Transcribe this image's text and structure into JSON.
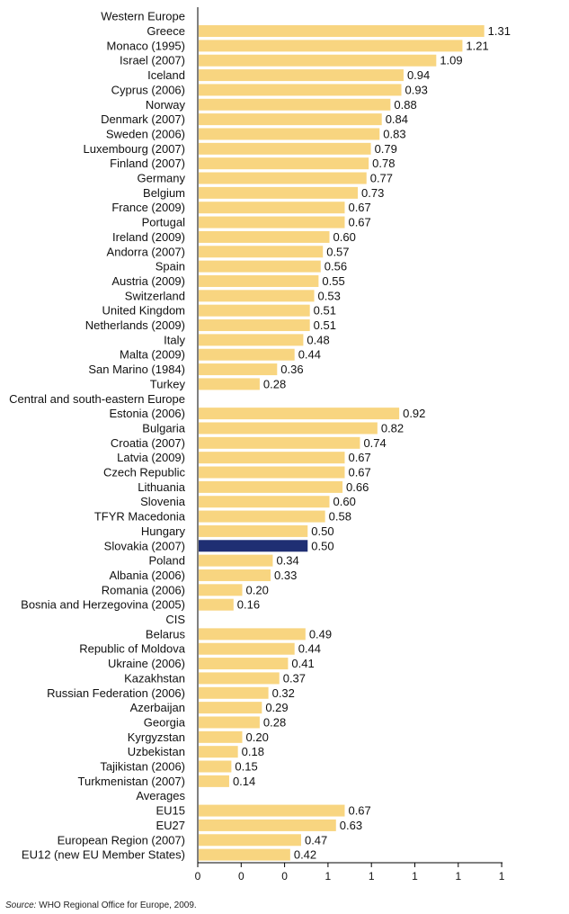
{
  "colors": {
    "bar": "#f8d580",
    "highlight": "#1f2f73",
    "axis": "#000000"
  },
  "source": {
    "label": "Source:",
    "text": "WHO Regional Office for Europe, 2009."
  },
  "chart_data": {
    "type": "bar",
    "orientation": "horizontal",
    "title": "",
    "xlabel": "",
    "ylabel": "",
    "xlim": [
      0,
      1.45
    ],
    "x_tick_labels": [
      "0",
      "0",
      "0",
      "1",
      "1",
      "1",
      "1",
      "1"
    ],
    "highlight": "Slovakia (2007)",
    "groups": [
      {
        "name": "Western Europe",
        "items": [
          {
            "label": "Greece",
            "value": 1.31
          },
          {
            "label": "Monaco (1995)",
            "value": 1.21
          },
          {
            "label": "Israel (2007)",
            "value": 1.09
          },
          {
            "label": "Iceland",
            "value": 0.94
          },
          {
            "label": "Cyprus (2006)",
            "value": 0.93
          },
          {
            "label": "Norway",
            "value": 0.88
          },
          {
            "label": "Denmark (2007)",
            "value": 0.84
          },
          {
            "label": "Sweden (2006)",
            "value": 0.83
          },
          {
            "label": "Luxembourg (2007)",
            "value": 0.79
          },
          {
            "label": "Finland (2007)",
            "value": 0.78
          },
          {
            "label": "Germany",
            "value": 0.77
          },
          {
            "label": "Belgium",
            "value": 0.73
          },
          {
            "label": "France (2009)",
            "value": 0.67
          },
          {
            "label": "Portugal",
            "value": 0.67
          },
          {
            "label": "Ireland (2009)",
            "value": 0.6
          },
          {
            "label": "Andorra (2007)",
            "value": 0.57
          },
          {
            "label": "Spain",
            "value": 0.56
          },
          {
            "label": "Austria (2009)",
            "value": 0.55
          },
          {
            "label": "Switzerland",
            "value": 0.53
          },
          {
            "label": "United Kingdom",
            "value": 0.51
          },
          {
            "label": "Netherlands (2009)",
            "value": 0.51
          },
          {
            "label": "Italy",
            "value": 0.48
          },
          {
            "label": "Malta (2009)",
            "value": 0.44
          },
          {
            "label": "San Marino (1984)",
            "value": 0.36
          },
          {
            "label": "Turkey",
            "value": 0.28
          }
        ]
      },
      {
        "name": "Central and south-eastern Europe",
        "items": [
          {
            "label": "Estonia (2006)",
            "value": 0.92
          },
          {
            "label": "Bulgaria",
            "value": 0.82
          },
          {
            "label": "Croatia (2007)",
            "value": 0.74
          },
          {
            "label": "Latvia (2009)",
            "value": 0.67
          },
          {
            "label": "Czech Republic",
            "value": 0.67
          },
          {
            "label": "Lithuania",
            "value": 0.66
          },
          {
            "label": "Slovenia",
            "value": 0.6
          },
          {
            "label": "TFYR Macedonia",
            "value": 0.58
          },
          {
            "label": "Hungary",
            "value": 0.5
          },
          {
            "label": "Slovakia (2007)",
            "value": 0.5
          },
          {
            "label": "Poland",
            "value": 0.34
          },
          {
            "label": "Albania (2006)",
            "value": 0.33
          },
          {
            "label": "Romania (2006)",
            "value": 0.2
          },
          {
            "label": "Bosnia and Herzegovina (2005)",
            "value": 0.16
          }
        ]
      },
      {
        "name": "CIS",
        "items": [
          {
            "label": "Belarus",
            "value": 0.49
          },
          {
            "label": "Republic of Moldova",
            "value": 0.44
          },
          {
            "label": "Ukraine (2006)",
            "value": 0.41
          },
          {
            "label": "Kazakhstan",
            "value": 0.37
          },
          {
            "label": "Russian Federation (2006)",
            "value": 0.32
          },
          {
            "label": "Azerbaijan",
            "value": 0.29
          },
          {
            "label": "Georgia",
            "value": 0.28
          },
          {
            "label": "Kyrgyzstan",
            "value": 0.2
          },
          {
            "label": "Uzbekistan",
            "value": 0.18
          },
          {
            "label": "Tajikistan (2006)",
            "value": 0.15
          },
          {
            "label": "Turkmenistan (2007)",
            "value": 0.14
          }
        ]
      },
      {
        "name": "Averages",
        "items": [
          {
            "label": "EU15",
            "value": 0.67
          },
          {
            "label": "EU27",
            "value": 0.63
          },
          {
            "label": "European Region (2007)",
            "value": 0.47
          },
          {
            "label": "EU12 (new EU Member States)",
            "value": 0.42
          }
        ]
      }
    ]
  }
}
